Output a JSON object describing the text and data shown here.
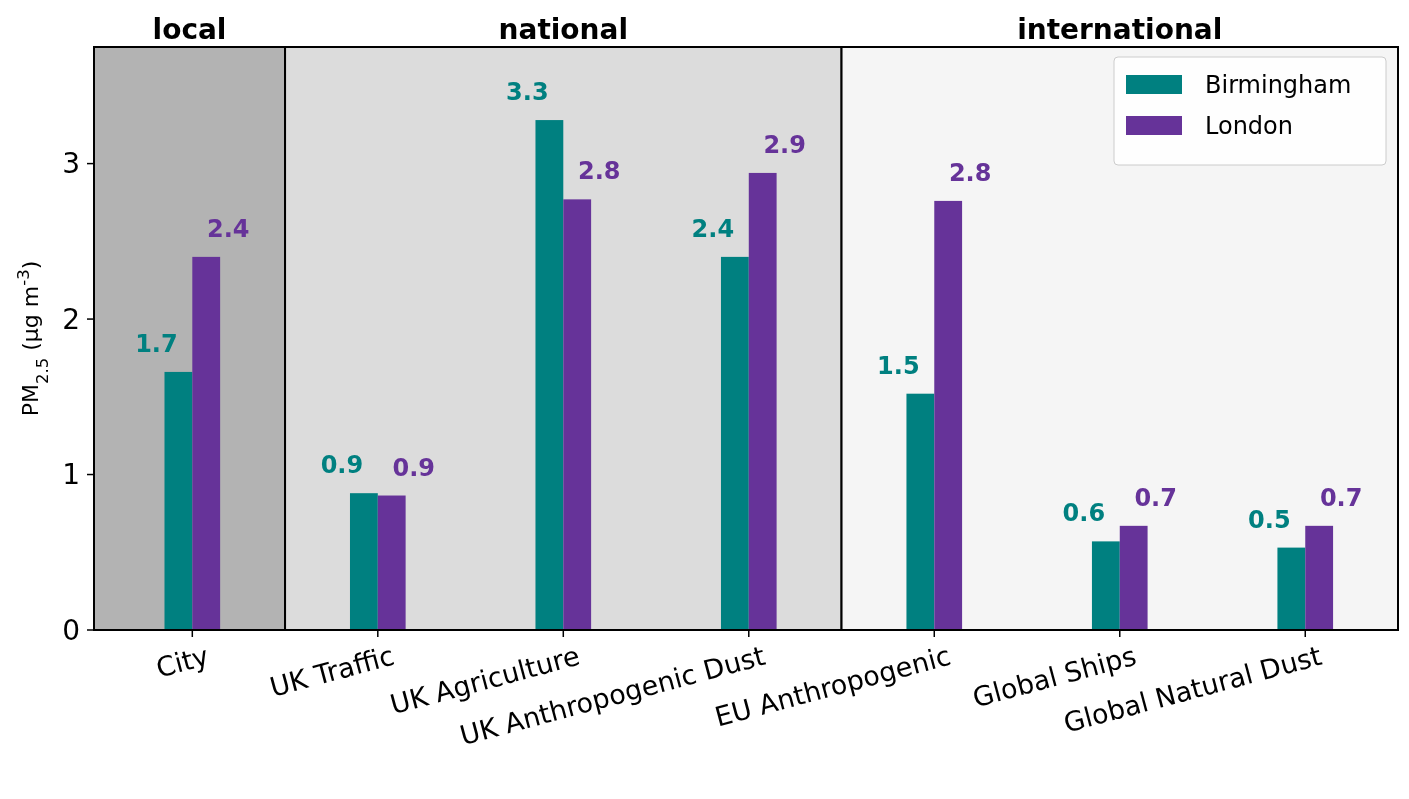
{
  "chart_data": {
    "type": "bar",
    "ylabel": "PM$_{2.5}$ (μg m$^{-3}$)",
    "categories": [
      "City",
      "UK Traffic",
      "UK Agriculture",
      "UK Anthropogenic Dust",
      "EU Anthropogenic",
      "Global Ships",
      "Global Natural Dust"
    ],
    "series": [
      {
        "name": "Birmingham",
        "color": "#008080",
        "values": [
          1.66,
          0.88,
          3.28,
          2.4,
          1.52,
          0.57,
          0.53
        ],
        "value_labels": [
          "1.7",
          "0.9",
          "3.3",
          "2.4",
          "1.5",
          "0.6",
          "0.5"
        ]
      },
      {
        "name": "London",
        "color": "#663399",
        "values": [
          2.4,
          0.865,
          2.77,
          2.94,
          2.76,
          0.67,
          0.67
        ],
        "value_labels": [
          "2.4",
          "0.9",
          "2.8",
          "2.9",
          "2.8",
          "0.7",
          "0.7"
        ]
      }
    ],
    "ylim": [
      0,
      3.75
    ],
    "yticks": [
      0,
      1,
      2,
      3
    ],
    "grid": false,
    "legend": "top right",
    "bands": [
      {
        "axis": "x",
        "from": "City",
        "to": "City",
        "label": "local",
        "color": "#b3b3b3"
      },
      {
        "axis": "x",
        "from": "UK Traffic",
        "to": "UK Anthropogenic Dust",
        "label": "national",
        "color": "#dcdcdc"
      },
      {
        "axis": "x",
        "from": "EU Anthropogenic",
        "to": "Global Natural Dust",
        "label": "international",
        "color": "#f5f5f5"
      }
    ]
  }
}
